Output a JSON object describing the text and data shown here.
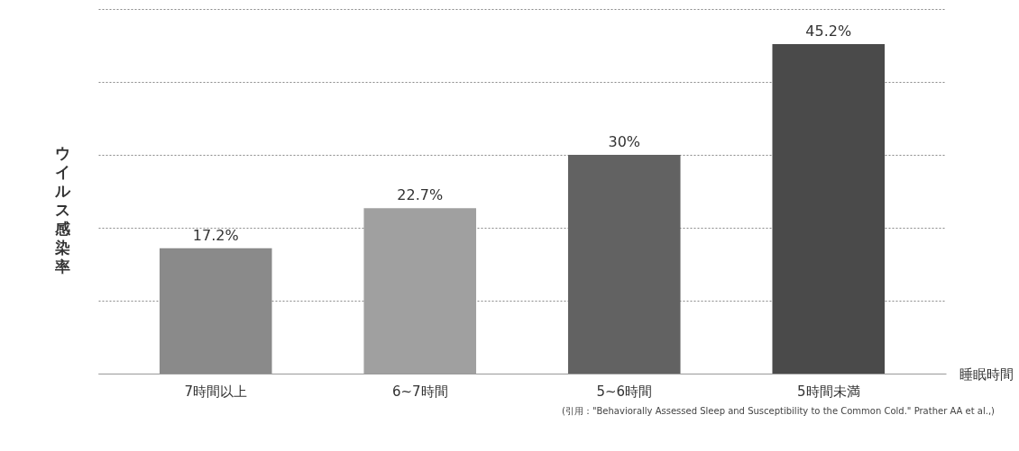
{
  "chart_data": {
    "type": "bar",
    "xlabel": "睡眠時間",
    "ylabel": "ウイルス感染率",
    "categories": [
      "7時間以上",
      "6~7時間",
      "5~6時間",
      "5時間未満"
    ],
    "values": [
      17.2,
      22.7,
      30,
      45.2
    ],
    "colors": [
      "#8a8a8a",
      "#a0a0a0",
      "#626262",
      "#4a4a4a"
    ],
    "value_labels": [
      "17.2%",
      "22.7%",
      "30%",
      "45.2%"
    ],
    "grid": "y",
    "annotations": [
      "(引用：\"Behaviorally Assessed Sleep and Susceptibility to the Common Cold.\" Prather AA et al.,)"
    ]
  }
}
